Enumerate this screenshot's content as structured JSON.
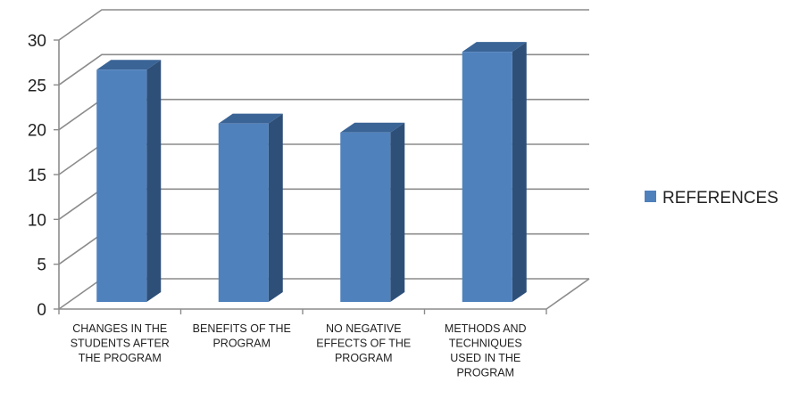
{
  "chart_data": {
    "type": "bar",
    "style": "3d-column",
    "categories": [
      [
        "CHANGES IN THE",
        "STUDENTS AFTER",
        "THE PROGRAM"
      ],
      [
        "BENEFITS OF THE",
        "PROGRAM"
      ],
      [
        "NO NEGATIVE",
        "EFFECTS OF THE",
        "PROGRAM"
      ],
      [
        "METHODS AND",
        "TECHNIQUES",
        "USED IN THE",
        "PROGRAM"
      ]
    ],
    "series": [
      {
        "name": "REFERENCES",
        "values": [
          26,
          20,
          19,
          28
        ]
      }
    ],
    "ylim": [
      0,
      30
    ],
    "yticks": [
      "0",
      "5",
      "10",
      "15",
      "20",
      "25",
      "30"
    ],
    "grid": true,
    "legend": "right",
    "colors": {
      "front": "#4f81bd",
      "side": "#2e4f78",
      "top": "#3a6496",
      "grid": "#8c8c8c"
    }
  }
}
